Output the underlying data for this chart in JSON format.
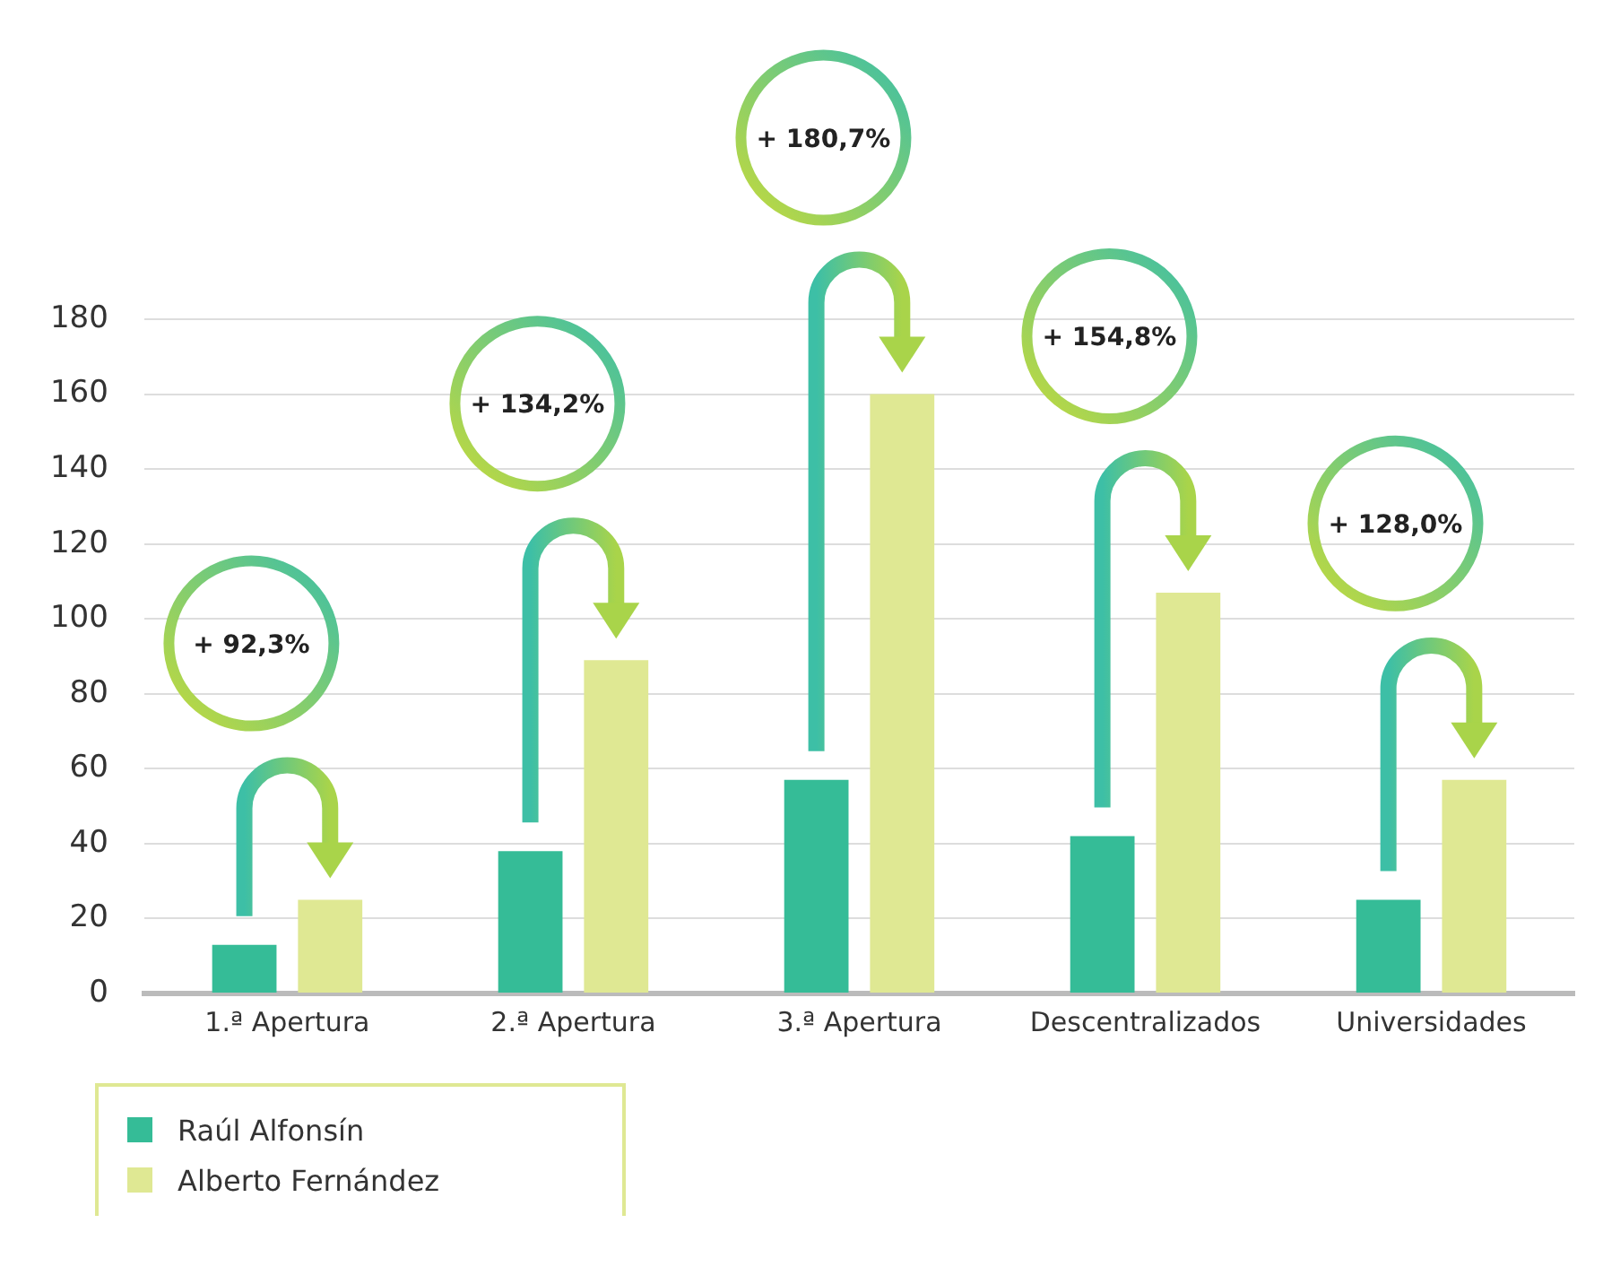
{
  "chart_data": {
    "type": "bar",
    "categories": [
      "1.ª Apertura",
      "2.ª Apertura",
      "3.ª Apertura",
      "Descentralizados",
      "Universidades"
    ],
    "series": [
      {
        "name": "Raúl Alfonsín",
        "color": "#35bc97",
        "values": [
          13,
          38,
          57,
          42,
          25
        ]
      },
      {
        "name": "Alberto Fernández",
        "color": "#dfe893",
        "values": [
          25,
          89,
          160,
          107,
          57
        ]
      }
    ],
    "ylim": [
      0,
      180
    ],
    "yticks": [
      0,
      20,
      40,
      60,
      80,
      100,
      120,
      140,
      160,
      180
    ],
    "grid": "y",
    "legend": "bottom left",
    "annotations": [
      "+ 92,3%",
      "+ 134,2%",
      "+ 180,7%",
      "+ 154,8%",
      "+ 128,0%"
    ]
  }
}
